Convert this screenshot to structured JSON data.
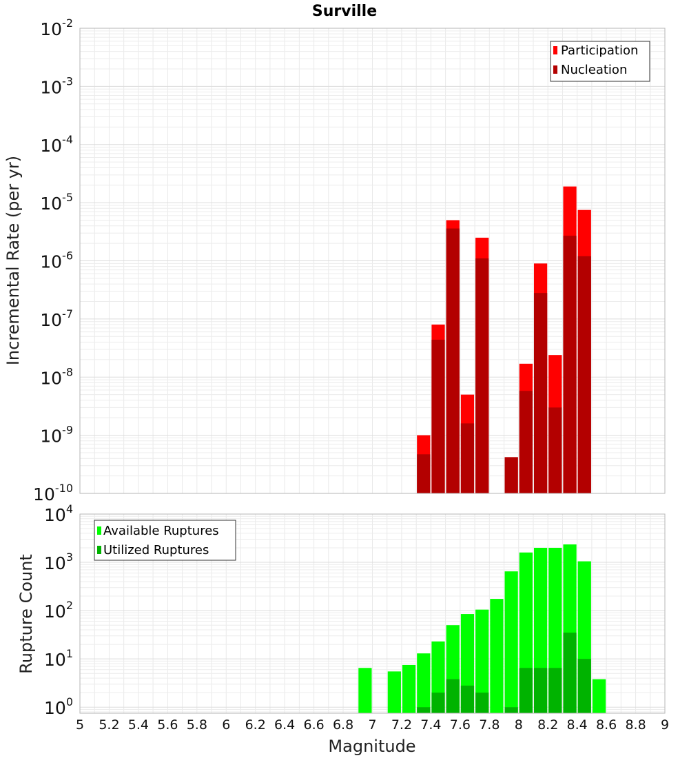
{
  "chart_data": [
    {
      "type": "bar",
      "title": "Surville",
      "xlabel": "",
      "ylabel": "Incremental Rate (per yr)",
      "y_scale": "log",
      "xlim": [
        5,
        9
      ],
      "ylim": [
        1e-10,
        0.01
      ],
      "grid": true,
      "legend_position": "top-right",
      "y_tick_labels": [
        {
          "base": "10",
          "exp": "-10"
        },
        {
          "base": "10",
          "exp": "-9"
        },
        {
          "base": "10",
          "exp": "-8"
        },
        {
          "base": "10",
          "exp": "-7"
        },
        {
          "base": "10",
          "exp": "-6"
        },
        {
          "base": "10",
          "exp": "-5"
        },
        {
          "base": "10",
          "exp": "-4"
        },
        {
          "base": "10",
          "exp": "-3"
        },
        {
          "base": "10",
          "exp": "-2"
        }
      ],
      "series": [
        {
          "name": "Participation",
          "color": "#ff0000",
          "points": [
            [
              7.35,
              1e-09
            ],
            [
              7.45,
              8e-08
            ],
            [
              7.55,
              5e-06
            ],
            [
              7.65,
              5e-09
            ],
            [
              7.75,
              2.5e-06
            ],
            [
              7.95,
              4.2e-10
            ],
            [
              8.05,
              1.7e-08
            ],
            [
              8.15,
              9e-07
            ],
            [
              8.25,
              2.4e-08
            ],
            [
              8.35,
              1.9e-05
            ],
            [
              8.45,
              7.5e-06
            ]
          ]
        },
        {
          "name": "Nucleation",
          "color": "#b30000",
          "points": [
            [
              7.35,
              4.7e-10
            ],
            [
              7.45,
              4.4e-08
            ],
            [
              7.55,
              3.6e-06
            ],
            [
              7.65,
              1.6e-09
            ],
            [
              7.75,
              1.1e-06
            ],
            [
              7.95,
              4.2e-10
            ],
            [
              8.05,
              5.8e-09
            ],
            [
              8.15,
              2.8e-07
            ],
            [
              8.25,
              3e-09
            ],
            [
              8.35,
              2.7e-06
            ],
            [
              8.45,
              1.2e-06
            ]
          ]
        }
      ]
    },
    {
      "type": "bar",
      "title": "",
      "xlabel": "Magnitude",
      "ylabel": "Rupture Count",
      "y_scale": "log",
      "xlim": [
        5,
        9
      ],
      "ylim": [
        0.75,
        10000
      ],
      "grid": true,
      "legend_position": "top-left",
      "x_tick_labels": [
        "5",
        "5.2",
        "5.4",
        "5.6",
        "5.8",
        "6",
        "6.2",
        "6.4",
        "6.6",
        "6.8",
        "7",
        "7.2",
        "7.4",
        "7.6",
        "7.8",
        "8",
        "8.2",
        "8.4",
        "8.6",
        "8.8",
        "9"
      ],
      "y_tick_labels": [
        {
          "base": "10",
          "exp": "0"
        },
        {
          "base": "10",
          "exp": "1"
        },
        {
          "base": "10",
          "exp": "2"
        },
        {
          "base": "10",
          "exp": "3"
        },
        {
          "base": "10",
          "exp": "4"
        }
      ],
      "series": [
        {
          "name": "Available Ruptures",
          "color": "#00ff00",
          "points": [
            [
              6.95,
              6.5
            ],
            [
              7.15,
              5.5
            ],
            [
              7.25,
              7.5
            ],
            [
              7.35,
              13
            ],
            [
              7.45,
              23
            ],
            [
              7.55,
              50
            ],
            [
              7.65,
              85
            ],
            [
              7.75,
              105
            ],
            [
              7.85,
              175
            ],
            [
              7.95,
              650
            ],
            [
              8.05,
              1600
            ],
            [
              8.15,
              2000
            ],
            [
              8.25,
              2000
            ],
            [
              8.35,
              2350
            ],
            [
              8.45,
              1050
            ],
            [
              8.55,
              3.8
            ]
          ]
        },
        {
          "name": "Utilized Ruptures",
          "color": "#00b300",
          "points": [
            [
              7.35,
              1
            ],
            [
              7.45,
              2
            ],
            [
              7.55,
              3.8
            ],
            [
              7.65,
              2.8
            ],
            [
              7.75,
              2
            ],
            [
              7.95,
              1
            ],
            [
              8.05,
              6.5
            ],
            [
              8.15,
              6.5
            ],
            [
              8.25,
              6.5
            ],
            [
              8.35,
              35
            ],
            [
              8.45,
              10
            ]
          ]
        }
      ]
    }
  ]
}
